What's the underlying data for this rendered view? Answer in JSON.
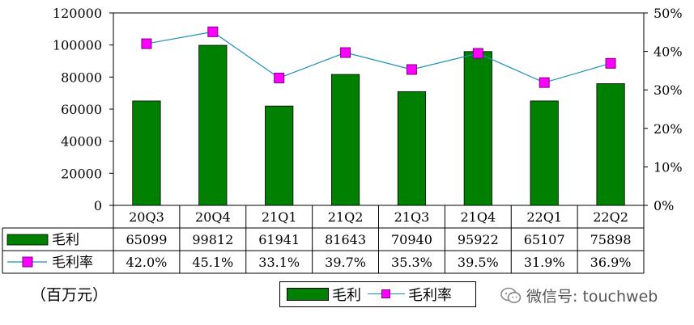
{
  "chart_data": {
    "type": "bar",
    "categories": [
      "20Q3",
      "20Q4",
      "21Q1",
      "21Q2",
      "21Q3",
      "21Q4",
      "22Q1",
      "22Q2"
    ],
    "series": [
      {
        "name": "毛利",
        "type": "bar",
        "axis": "left",
        "values": [
          65099,
          99812,
          61941,
          81643,
          70940,
          95922,
          65107,
          75898
        ],
        "labels": [
          "65099",
          "99812",
          "61941",
          "81643",
          "70940",
          "95922",
          "65107",
          "75898"
        ],
        "color": "#008000"
      },
      {
        "name": "毛利率",
        "type": "line",
        "axis": "right",
        "values": [
          42.0,
          45.1,
          33.1,
          39.7,
          35.3,
          39.5,
          31.9,
          36.9
        ],
        "labels": [
          "42.0%",
          "45.1%",
          "33.1%",
          "39.7%",
          "35.3%",
          "39.5%",
          "31.9%",
          "36.9%"
        ],
        "color": "#ff00ff",
        "line_color": "#1a8fb8"
      }
    ],
    "y_left": {
      "ylim": [
        0,
        120000
      ],
      "ticks": [
        "0",
        "20000",
        "40000",
        "60000",
        "80000",
        "100000",
        "120000"
      ]
    },
    "y_right": {
      "ylim": [
        0,
        50
      ],
      "ticks": [
        "0%",
        "10%",
        "20%",
        "30%",
        "40%",
        "50%"
      ]
    },
    "grid": false,
    "legend_position": "bottom",
    "data_table": true
  },
  "unit_label": "（百万元）",
  "legend": {
    "bar_label": "毛利",
    "line_label": "毛利率"
  },
  "watermark": {
    "text": "微信号: touchweb",
    "icon": "wechat-icon"
  }
}
